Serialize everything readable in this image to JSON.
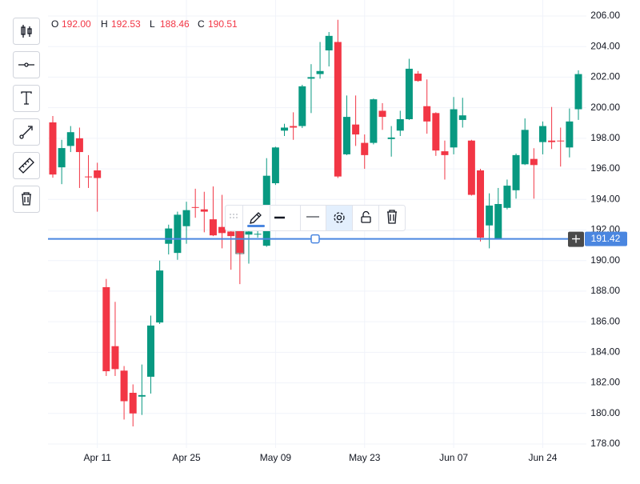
{
  "chart_data": {
    "type": "candlestick",
    "categories": [
      null,
      null,
      null,
      null,
      null,
      "Apr 11",
      null,
      null,
      null,
      null,
      null,
      null,
      null,
      null,
      null,
      "Apr 25",
      null,
      null,
      null,
      null,
      null,
      null,
      null,
      null,
      null,
      "May 09",
      null,
      null,
      null,
      null,
      null,
      null,
      null,
      null,
      null,
      "May 23",
      null,
      null,
      null,
      null,
      null,
      null,
      null,
      null,
      null,
      "Jun 07",
      null,
      null,
      null,
      null,
      null,
      null,
      null,
      null,
      null,
      "Jun 24",
      null,
      null,
      null,
      null
    ],
    "open": [
      199.04,
      196.1,
      197.5,
      198.0,
      195.5,
      195.9,
      188.26,
      184.4,
      182.8,
      181.35,
      181.1,
      182.4,
      185.95,
      191.1,
      190.5,
      192.25,
      193.5,
      193.35,
      192.7,
      192.2,
      191.9,
      192.0,
      191.7,
      191.7,
      190.97,
      195.06,
      198.5,
      198.8,
      198.8,
      201.9,
      202.2,
      203.75,
      204.3,
      196.95,
      198.9,
      197.7,
      197.7,
      199.8,
      197.95,
      198.5,
      199.25,
      202.23,
      200.1,
      199.65,
      197.15,
      197.4,
      199.2,
      197.85,
      195.9,
      192.3,
      191.45,
      193.45,
      194.6,
      196.3,
      196.65,
      197.75,
      197.85,
      197.85,
      197.4,
      199.9
    ],
    "high": [
      199.46,
      197.9,
      198.8,
      198.7,
      196.9,
      196.4,
      188.8,
      187.3,
      183.1,
      181.9,
      183.2,
      186.4,
      190.0,
      192.35,
      193.2,
      193.85,
      194.7,
      194.5,
      194.85,
      194.3,
      192.65,
      192.53,
      192.2,
      192.0,
      196.7,
      197.45,
      198.95,
      199.7,
      201.5,
      202.85,
      204.3,
      204.95,
      205.75,
      200.8,
      200.8,
      198.25,
      200.6,
      200.3,
      198.8,
      199.8,
      203.2,
      202.4,
      201.85,
      199.7,
      197.85,
      200.7,
      200.65,
      197.9,
      196.0,
      194.4,
      194.75,
      195.3,
      197.0,
      199.3,
      197.35,
      199.1,
      200.05,
      198.7,
      199.95,
      202.45
    ],
    "low": [
      195.42,
      195.0,
      197.1,
      194.75,
      194.75,
      193.2,
      182.45,
      182.45,
      179.6,
      179.15,
      179.9,
      181.3,
      185.85,
      190.4,
      190.05,
      191.1,
      192.8,
      191.85,
      191.6,
      190.8,
      189.4,
      188.46,
      189.8,
      191.5,
      190.9,
      194.95,
      198.15,
      197.9,
      198.67,
      199.65,
      201.9,
      202.7,
      195.4,
      196.9,
      197.5,
      196.0,
      197.6,
      198.55,
      196.8,
      198.15,
      199.2,
      201.7,
      198.3,
      196.85,
      195.3,
      196.95,
      198.7,
      194.25,
      191.25,
      190.8,
      191.4,
      193.35,
      194.05,
      196.25,
      194.05,
      196.95,
      197.3,
      196.15,
      196.75,
      199.2
    ],
    "close": [
      195.63,
      197.36,
      198.4,
      197.1,
      195.45,
      195.4,
      182.76,
      182.9,
      180.8,
      180.0,
      181.2,
      185.75,
      189.35,
      192.1,
      193.0,
      193.3,
      193.45,
      193.2,
      191.65,
      191.8,
      191.6,
      190.51,
      191.9,
      191.75,
      195.55,
      197.4,
      198.7,
      198.7,
      201.4,
      202.0,
      202.4,
      204.7,
      195.5,
      199.4,
      198.25,
      196.9,
      200.55,
      199.4,
      198.05,
      199.25,
      202.55,
      201.75,
      199.1,
      197.2,
      196.9,
      199.9,
      199.5,
      194.3,
      191.5,
      193.6,
      193.7,
      194.9,
      196.9,
      198.55,
      196.25,
      198.8,
      197.75,
      197.8,
      199.1,
      202.2
    ],
    "up_color": "#089981",
    "down_color": "#f23645",
    "ylim": [
      178,
      206
    ],
    "yticks": [
      {
        "value": 178,
        "label": "178.00"
      },
      {
        "value": 180,
        "label": "180.00"
      },
      {
        "value": 182,
        "label": "182.00"
      },
      {
        "value": 184,
        "label": "184.00"
      },
      {
        "value": 186,
        "label": "186.00"
      },
      {
        "value": 188,
        "label": "188.00"
      },
      {
        "value": 190,
        "label": "190.00"
      },
      {
        "value": 192,
        "label": "192.00"
      },
      {
        "value": 194,
        "label": "194.00"
      },
      {
        "value": 196,
        "label": "196.00"
      },
      {
        "value": 198,
        "label": "198.00"
      },
      {
        "value": 200,
        "label": "200.00"
      },
      {
        "value": 202,
        "label": "202.00"
      },
      {
        "value": 204,
        "label": "204.00"
      },
      {
        "value": 206,
        "label": "206.00"
      }
    ],
    "grid": true,
    "hline": {
      "value": 191.42,
      "color": "#4a86e0"
    },
    "ohlc_legend": [
      {
        "key": "O",
        "text": "192.00"
      },
      {
        "key": "H",
        "text": "192.53"
      },
      {
        "key": "L",
        "text": "188.46"
      },
      {
        "key": "C",
        "text": "190.51"
      }
    ],
    "toolbar": {
      "line_width": "2"
    }
  }
}
